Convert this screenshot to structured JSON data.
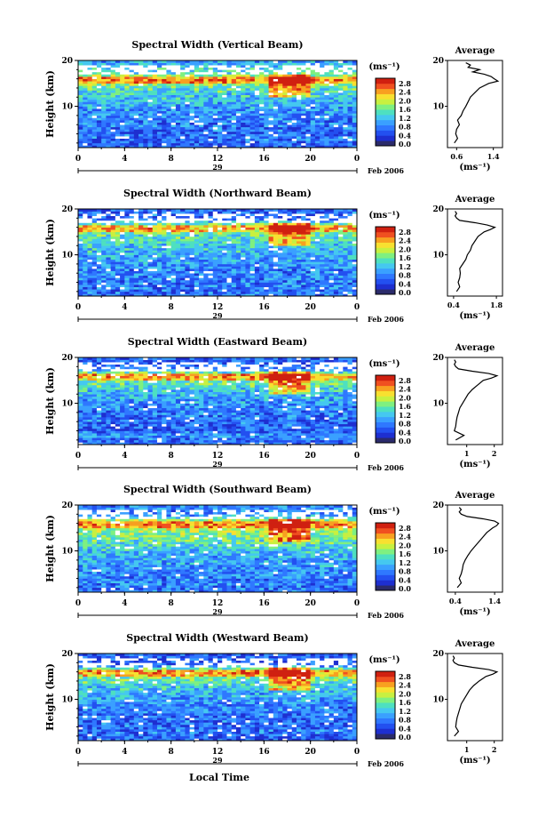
{
  "figure": {
    "bottom_label": "Local Time",
    "date_label": "Feb 2006",
    "day_label": "29",
    "avg_title": "Average",
    "unit_label": "(ms⁻¹)",
    "y_axis_label": "Height (km)",
    "colors": [
      "#2b2b6b",
      "#1e2fd0",
      "#2350f0",
      "#2f78ff",
      "#3aa0ff",
      "#45c8f0",
      "#4ee0c0",
      "#7ff080",
      "#c8f040",
      "#f8e030",
      "#f8a020",
      "#f05020",
      "#d02010"
    ]
  },
  "chart_data": [
    {
      "type": "heatmap",
      "title": "Spectral Width (Vertical Beam)",
      "ylabel": "Height (km)",
      "x_ticks": [
        "0",
        "4",
        "8",
        "12",
        "16",
        "20",
        "0"
      ],
      "y_ticks": [
        "20",
        "10"
      ],
      "xlim": [
        0,
        24
      ],
      "ylim": [
        1,
        20
      ],
      "colorbar_ticks": [
        "2.8",
        "2.4",
        "2.0",
        "1.6",
        "1.2",
        "0.8",
        "0.4",
        "0.0"
      ],
      "average_profile": {
        "xlabel": "(ms⁻¹)",
        "x_ticks": [
          "0.6",
          "1.4"
        ],
        "y_ticks": [
          "20",
          "10"
        ],
        "xlim": [
          0.4,
          1.6
        ],
        "height_km": [
          2,
          3,
          4,
          5,
          6,
          7,
          8,
          9,
          10,
          11,
          12,
          13,
          14,
          15,
          15.5,
          16,
          16.5,
          17,
          17.5,
          18,
          18.5,
          19,
          19.5
        ],
        "values": [
          0.55,
          0.62,
          0.58,
          0.6,
          0.66,
          0.62,
          0.7,
          0.74,
          0.8,
          0.85,
          0.9,
          1.0,
          1.1,
          1.3,
          1.5,
          1.42,
          1.35,
          1.2,
          0.95,
          1.1,
          0.85,
          0.9,
          0.8
        ]
      }
    },
    {
      "type": "heatmap",
      "title": "Spectral Width (Northward Beam)",
      "ylabel": "Height (km)",
      "x_ticks": [
        "0",
        "4",
        "8",
        "12",
        "16",
        "20",
        "0"
      ],
      "y_ticks": [
        "20",
        "10"
      ],
      "xlim": [
        0,
        24
      ],
      "ylim": [
        1,
        20
      ],
      "colorbar_ticks": [
        "2.8",
        "2.4",
        "2.0",
        "1.6",
        "1.2",
        "0.8",
        "0.4",
        "0.0"
      ],
      "average_profile": {
        "xlabel": "(ms⁻¹)",
        "x_ticks": [
          "0.4",
          "1.8"
        ],
        "y_ticks": [
          "20",
          "10"
        ],
        "xlim": [
          0.2,
          2.0
        ],
        "height_km": [
          2,
          3,
          4,
          5,
          6,
          7,
          8,
          9,
          10,
          11,
          12,
          13,
          14,
          15,
          15.5,
          16,
          16.5,
          17,
          17.5,
          18,
          18.5,
          19,
          19.5
        ],
        "values": [
          0.5,
          0.6,
          0.55,
          0.6,
          0.62,
          0.6,
          0.7,
          0.8,
          0.85,
          0.95,
          1.0,
          1.1,
          1.2,
          1.4,
          1.6,
          1.75,
          1.5,
          1.1,
          0.6,
          0.5,
          0.45,
          0.5,
          0.45
        ]
      }
    },
    {
      "type": "heatmap",
      "title": "Spectral Width (Eastward Beam)",
      "ylabel": "Height (km)",
      "x_ticks": [
        "0",
        "4",
        "8",
        "12",
        "16",
        "20",
        "0"
      ],
      "y_ticks": [
        "20",
        "10"
      ],
      "xlim": [
        0,
        24
      ],
      "ylim": [
        1,
        20
      ],
      "colorbar_ticks": [
        "2.8",
        "2.4",
        "2.0",
        "1.6",
        "1.2",
        "0.8",
        "0.4",
        "0.0"
      ],
      "average_profile": {
        "xlabel": "(ms⁻¹)",
        "x_ticks": [
          "1",
          "2"
        ],
        "y_ticks": [
          "20",
          "10"
        ],
        "xlim": [
          0.3,
          2.3
        ],
        "height_km": [
          2,
          3,
          4,
          5,
          6,
          7,
          8,
          9,
          10,
          11,
          12,
          13,
          14,
          15,
          15.5,
          16,
          16.5,
          17,
          17.5,
          18,
          18.5,
          19,
          19.5
        ],
        "values": [
          0.6,
          0.9,
          0.55,
          0.6,
          0.62,
          0.65,
          0.7,
          0.75,
          0.85,
          0.95,
          1.05,
          1.2,
          1.4,
          1.6,
          1.9,
          2.1,
          1.8,
          1.2,
          0.7,
          0.6,
          0.55,
          0.6,
          0.55
        ]
      }
    },
    {
      "type": "heatmap",
      "title": "Spectral Width (Southward Beam)",
      "ylabel": "Height (km)",
      "x_ticks": [
        "0",
        "4",
        "8",
        "12",
        "16",
        "20",
        "0"
      ],
      "y_ticks": [
        "20",
        "10"
      ],
      "xlim": [
        0,
        24
      ],
      "ylim": [
        1,
        20
      ],
      "colorbar_ticks": [
        "2.8",
        "2.4",
        "2.0",
        "1.6",
        "1.2",
        "0.8",
        "0.4",
        "0.0"
      ],
      "average_profile": {
        "xlabel": "(ms⁻¹)",
        "x_ticks": [
          "0.4",
          "1.4"
        ],
        "y_ticks": [
          "20",
          "10"
        ],
        "xlim": [
          0.2,
          1.6
        ],
        "height_km": [
          2,
          3,
          4,
          5,
          6,
          7,
          8,
          9,
          10,
          11,
          12,
          13,
          14,
          15,
          15.5,
          16,
          16.5,
          17,
          17.5,
          18,
          18.5,
          19,
          19.5
        ],
        "values": [
          0.45,
          0.55,
          0.5,
          0.55,
          0.58,
          0.6,
          0.65,
          0.72,
          0.8,
          0.9,
          1.0,
          1.1,
          1.2,
          1.35,
          1.45,
          1.5,
          1.4,
          1.1,
          0.7,
          0.55,
          0.5,
          0.55,
          0.5
        ]
      }
    },
    {
      "type": "heatmap",
      "title": "Spectral Width (Westward Beam)",
      "ylabel": "Height (km)",
      "x_ticks": [
        "0",
        "4",
        "8",
        "12",
        "16",
        "20",
        "0"
      ],
      "y_ticks": [
        "20",
        "10"
      ],
      "xlim": [
        0,
        24
      ],
      "ylim": [
        1,
        20
      ],
      "colorbar_ticks": [
        "2.8",
        "2.4",
        "2.0",
        "1.6",
        "1.2",
        "0.8",
        "0.4",
        "0.0"
      ],
      "average_profile": {
        "xlabel": "(ms⁻¹)",
        "x_ticks": [
          "1",
          "2"
        ],
        "y_ticks": [
          "20",
          "10"
        ],
        "xlim": [
          0.3,
          2.3
        ],
        "height_km": [
          2,
          3,
          4,
          5,
          6,
          7,
          8,
          9,
          10,
          11,
          12,
          13,
          14,
          15,
          15.5,
          16,
          16.5,
          17,
          17.5,
          18,
          18.5,
          19,
          19.5
        ],
        "values": [
          0.55,
          0.7,
          0.6,
          0.62,
          0.65,
          0.7,
          0.75,
          0.8,
          0.9,
          1.0,
          1.1,
          1.25,
          1.45,
          1.7,
          1.95,
          2.1,
          1.8,
          1.2,
          0.7,
          0.55,
          0.5,
          0.55,
          0.5
        ]
      }
    }
  ]
}
